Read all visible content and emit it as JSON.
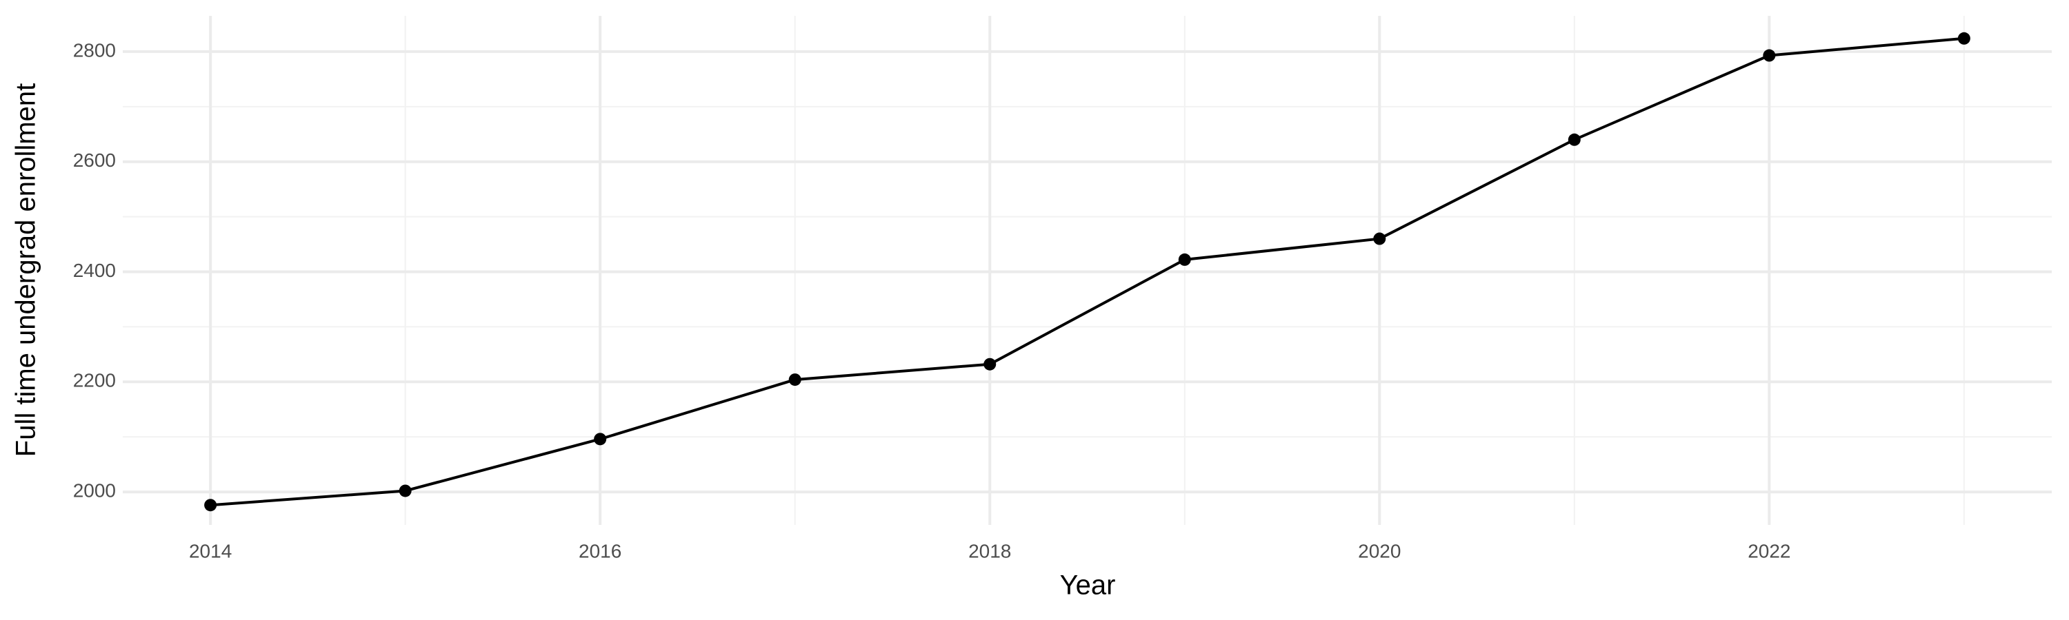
{
  "chart_data": {
    "type": "line",
    "x_label": "Year",
    "y_label": "Full time undergrad enrollment",
    "x": [
      2014,
      2015,
      2016,
      2017,
      2018,
      2019,
      2020,
      2021,
      2022,
      2023
    ],
    "series": [
      {
        "color": "#000000",
        "values": [
          1976,
          2002,
          2096,
          2204,
          2232,
          2422,
          2460,
          2640,
          2793,
          2824
        ]
      }
    ],
    "xlim": [
      2013.55,
      2023.45
    ],
    "ylim": [
      1940,
      2865
    ],
    "xticks": [
      2014,
      2016,
      2018,
      2020,
      2022
    ],
    "yticks": [
      2000,
      2200,
      2400,
      2600,
      2800
    ],
    "x_minor_ticks": [
      2015,
      2017,
      2019,
      2021,
      2023
    ],
    "y_minor_ticks": [
      2100,
      2300,
      2500,
      2700
    ],
    "grid": true
  }
}
